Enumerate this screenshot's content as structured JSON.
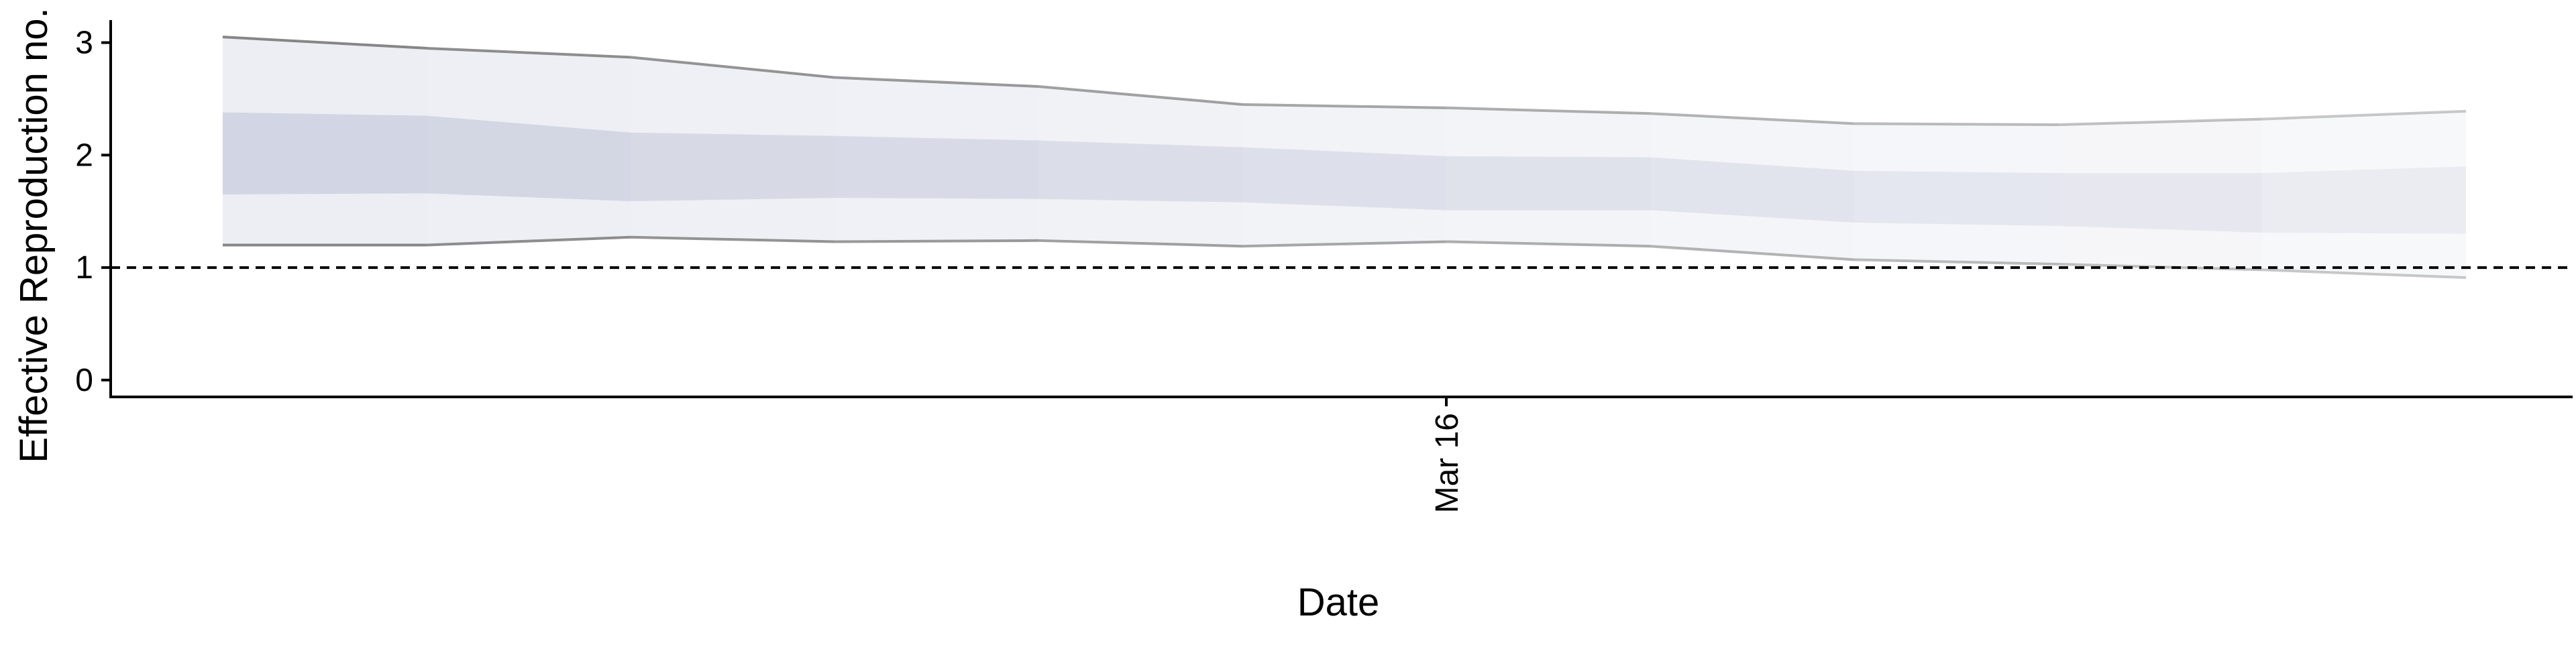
{
  "chart_data": {
    "type": "area",
    "title": "",
    "xlabel": "Date",
    "ylabel": "Effective Reproduction no.",
    "ylim": [
      -0.15,
      3.2
    ],
    "y_ticks": [
      0,
      1,
      2,
      3
    ],
    "x_tick_labels": [
      {
        "label": "Mar 16",
        "index": 6
      }
    ],
    "reference_line": {
      "y": 1,
      "style": "dashed"
    },
    "grid": false,
    "legend": "none",
    "point_count": 12,
    "series": [
      {
        "band": "outer",
        "upper": [
          3.05,
          2.95,
          2.87,
          2.69,
          2.61,
          2.45,
          2.42,
          2.37,
          2.28,
          2.27,
          2.32,
          2.39
        ],
        "lower": [
          1.2,
          1.2,
          1.27,
          1.23,
          1.24,
          1.19,
          1.23,
          1.19,
          1.07,
          1.03,
          0.98,
          0.91
        ]
      },
      {
        "band": "inner",
        "upper": [
          2.38,
          2.35,
          2.2,
          2.17,
          2.13,
          2.07,
          1.99,
          1.98,
          1.86,
          1.84,
          1.84,
          1.9
        ],
        "lower": [
          1.65,
          1.66,
          1.59,
          1.62,
          1.61,
          1.58,
          1.51,
          1.51,
          1.4,
          1.37,
          1.31,
          1.3
        ]
      }
    ],
    "colors": {
      "band": "#8c96b8",
      "line": "#7a7a7a",
      "axis": "#000000"
    }
  }
}
